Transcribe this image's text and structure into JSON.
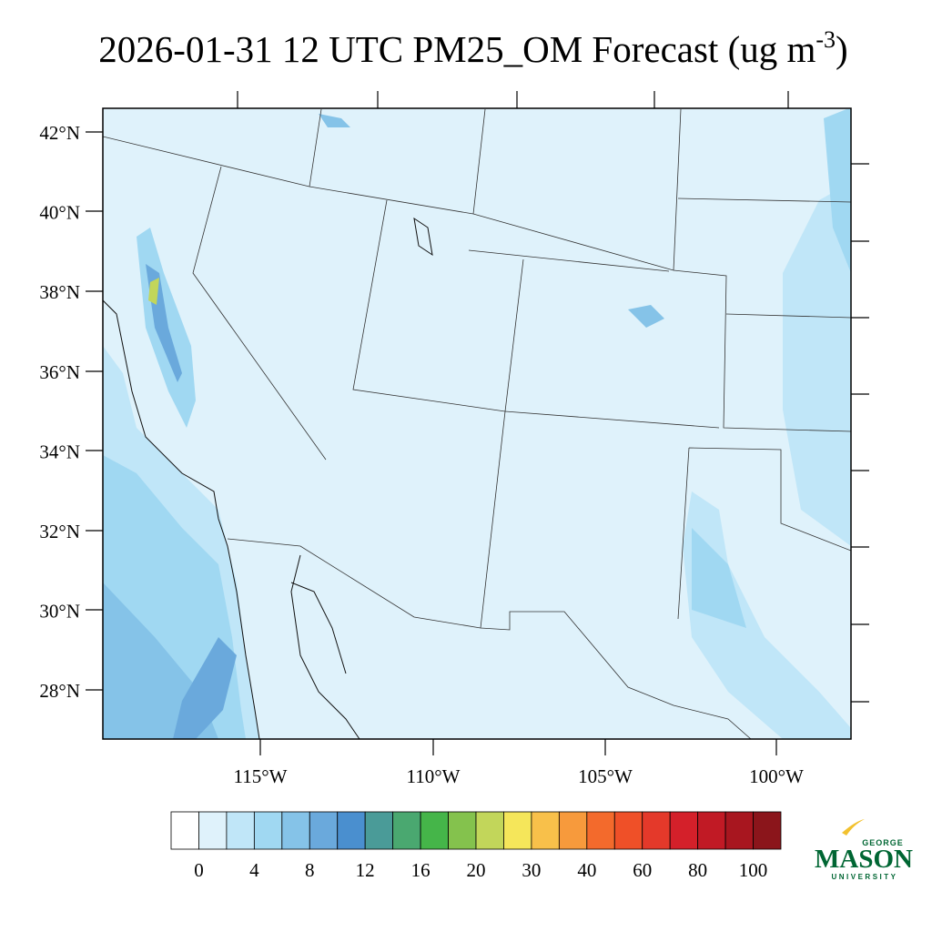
{
  "title": {
    "main": "2026-01-31 12 UTC PM25_OM Forecast (ug m",
    "superscript": "-3",
    "end": ")"
  },
  "map": {
    "lat_labels": [
      "42°N",
      "40°N",
      "38°N",
      "36°N",
      "34°N",
      "32°N",
      "30°N",
      "28°N"
    ],
    "lon_labels": [
      "115°W",
      "110°W",
      "105°W",
      "100°W"
    ]
  },
  "colorbar": {
    "colors": [
      "#ffffff",
      "#dff2fb",
      "#c0e6f8",
      "#a0d8f2",
      "#85c3e8",
      "#6aa9dc",
      "#4a8fcf",
      "#4a9b98",
      "#4aa870",
      "#45b549",
      "#84c24d",
      "#c2d65a",
      "#f5e65a",
      "#f8c04a",
      "#f79a3c",
      "#f36a2c",
      "#ef5028",
      "#e4392a",
      "#d4202a",
      "#c11a25",
      "#a8161f",
      "#8b151b"
    ],
    "labels": [
      0,
      4,
      8,
      12,
      16,
      20,
      30,
      40,
      60,
      80,
      100
    ]
  },
  "logo": {
    "top": "GEORGE",
    "main": "MASON",
    "bottom": "UNIVERSITY"
  }
}
